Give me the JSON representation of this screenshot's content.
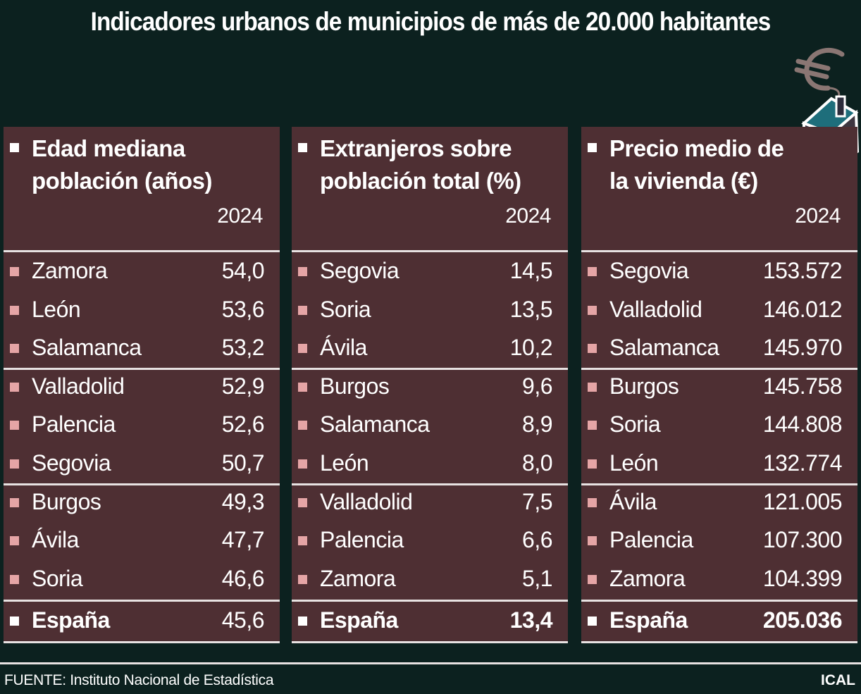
{
  "title": "Indicadores urbanos de municipios de más de 20.000 habitantes",
  "source": "FUENTE: Instituto Nacional de Estadística",
  "brand": "ICAL",
  "colors": {
    "background": "#0c211f",
    "panel": "#4e2f33",
    "bullet": "#e5a5a6"
  },
  "chart_data": {
    "type": "table",
    "title": "Indicadores urbanos de municipios de más de 20.000 habitantes",
    "tables": [
      {
        "header_line1": "Edad mediana",
        "header_line2": "población (años)",
        "year": "2024",
        "rows": [
          {
            "name": "Zamora",
            "value": "54,0"
          },
          {
            "name": "León",
            "value": "53,6"
          },
          {
            "name": "Salamanca",
            "value": "53,2"
          },
          {
            "name": "Valladolid",
            "value": "52,9"
          },
          {
            "name": "Palencia",
            "value": "52,6"
          },
          {
            "name": "Segovia",
            "value": "50,7"
          },
          {
            "name": "Burgos",
            "value": "49,3"
          },
          {
            "name": "Ávila",
            "value": "47,7"
          },
          {
            "name": "Soria",
            "value": "46,6"
          }
        ],
        "total": {
          "name": "España",
          "value": "45,6",
          "bold_value": false
        }
      },
      {
        "header_line1": "Extranjeros sobre",
        "header_line2": "población total (%)",
        "year": "2024",
        "rows": [
          {
            "name": "Segovia",
            "value": "14,5"
          },
          {
            "name": "Soria",
            "value": "13,5"
          },
          {
            "name": "Ávila",
            "value": "10,2"
          },
          {
            "name": "Burgos",
            "value": "9,6"
          },
          {
            "name": "Salamanca",
            "value": "8,9"
          },
          {
            "name": "León",
            "value": "8,0"
          },
          {
            "name": "Valladolid",
            "value": "7,5"
          },
          {
            "name": "Palencia",
            "value": "6,6"
          },
          {
            "name": "Zamora",
            "value": "5,1"
          }
        ],
        "total": {
          "name": "España",
          "value": "13,4",
          "bold_value": true
        }
      },
      {
        "header_line1": "Precio medio de",
        "header_line2": "la vivienda (€)",
        "year": "2024",
        "rows": [
          {
            "name": "Segovia",
            "value": "153.572"
          },
          {
            "name": "Valladolid",
            "value": "146.012"
          },
          {
            "name": "Salamanca",
            "value": "145.970"
          },
          {
            "name": "Burgos",
            "value": "145.758"
          },
          {
            "name": "Soria",
            "value": "144.808"
          },
          {
            "name": "León",
            "value": "132.774"
          },
          {
            "name": "Ávila",
            "value": "121.005"
          },
          {
            "name": "Palencia",
            "value": "107.300"
          },
          {
            "name": "Zamora",
            "value": "104.399"
          }
        ],
        "total": {
          "name": "España",
          "value": "205.036",
          "bold_value": true
        }
      }
    ]
  }
}
